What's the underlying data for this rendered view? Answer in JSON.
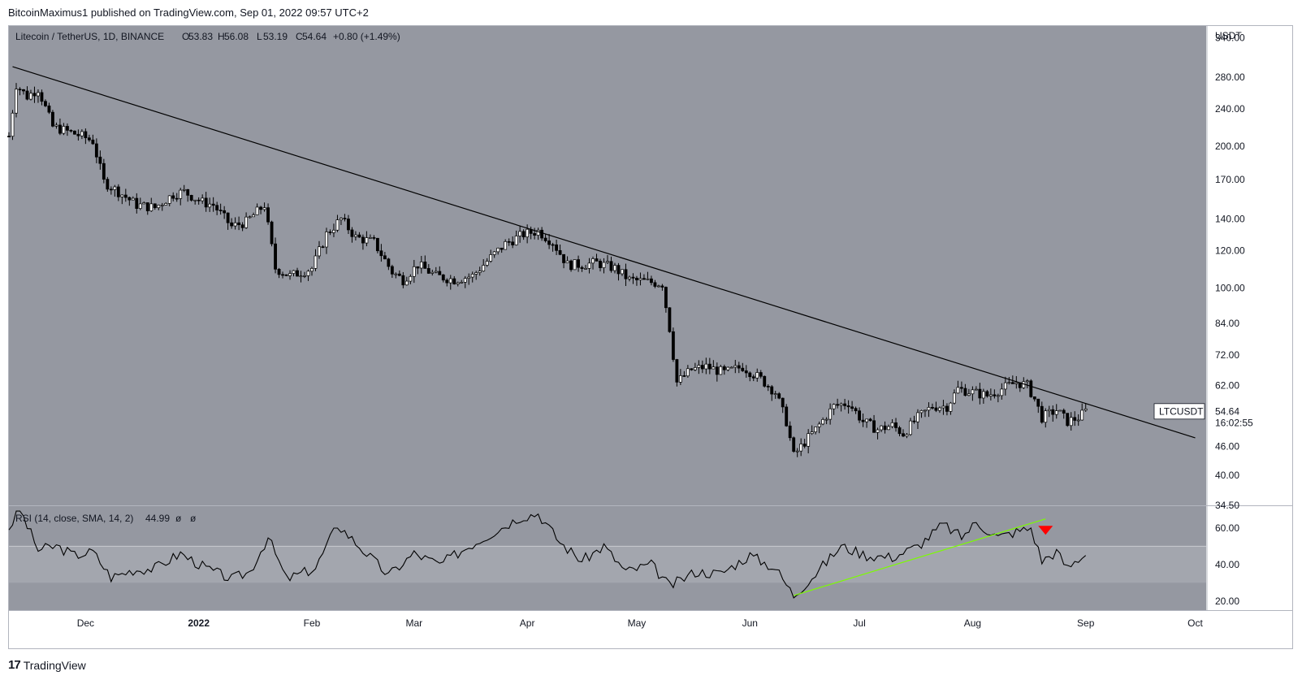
{
  "header": {
    "author_text": "BitcoinMaximus1 published on TradingView.com, Sep 01, 2022 09:57 UTC+2"
  },
  "legend": {
    "symbol": "Litecoin / TetherUS, 1D, BINANCE",
    "open_label": "O",
    "open": "53.83",
    "high_label": "H",
    "high": "56.08",
    "low_label": "L",
    "low": "53.19",
    "close_label": "C",
    "close": "54.64",
    "change": "+0.80 (+1.49%)"
  },
  "rsi_legend": {
    "label": "RSI (14, close, SMA, 14, 2)",
    "value": "44.99",
    "extra1": "ø",
    "extra2": "ø"
  },
  "price_axis": {
    "currency": "USDT",
    "ticks": [
      "340.00",
      "280.00",
      "240.00",
      "200.00",
      "170.00",
      "140.00",
      "120.00",
      "100.00",
      "84.00",
      "72.00",
      "62.00",
      "46.00",
      "40.00",
      "34.50"
    ]
  },
  "rsi_axis": {
    "ticks": [
      "60.00",
      "40.00",
      "20.00"
    ]
  },
  "price_tag": {
    "symbol": "LTCUSDT",
    "price": "54.64",
    "countdown": "16:02:55"
  },
  "time_axis": {
    "labels": [
      "Dec",
      "2022",
      "Feb",
      "Mar",
      "Apr",
      "May",
      "Jun",
      "Jul",
      "Aug",
      "Sep",
      "Oct"
    ]
  },
  "footer": {
    "brand": "TradingView",
    "logo_mark": "17"
  },
  "colors": {
    "pane_bg": "#9598a1",
    "rsi_band_bg": "#a3a6ae",
    "candle_up": "#ffffff",
    "candle_down": "#000000",
    "trendline": "#000000",
    "rsi_line": "#000000",
    "rsi_trendline": "#7cfc00",
    "signal_arrow": "#ff0000"
  },
  "chart_data": [
    {
      "type": "candlestick",
      "title": "Litecoin / TetherUS, 1D, BINANCE",
      "y_scale": "log",
      "ylim": [
        34.5,
        360
      ],
      "xlabel": "",
      "ylabel": "USDT",
      "x_range": [
        "2021-11-10",
        "2022-10-04"
      ],
      "series": [
        {
          "name": "LTCUSDT",
          "close_path": [
            [
              "2021-11-10",
              210
            ],
            [
              "2021-11-12",
              270
            ],
            [
              "2021-11-15",
              255
            ],
            [
              "2021-11-18",
              265
            ],
            [
              "2021-11-22",
              220
            ],
            [
              "2021-11-26",
              215
            ],
            [
              "2021-11-30",
              210
            ],
            [
              "2021-12-03",
              205
            ],
            [
              "2021-12-06",
              168
            ],
            [
              "2021-12-10",
              160
            ],
            [
              "2021-12-15",
              150
            ],
            [
              "2021-12-20",
              148
            ],
            [
              "2021-12-25",
              158
            ],
            [
              "2021-12-28",
              160
            ],
            [
              "2022-01-02",
              152
            ],
            [
              "2022-01-05",
              150
            ],
            [
              "2022-01-10",
              135
            ],
            [
              "2022-01-14",
              138
            ],
            [
              "2022-01-19",
              150
            ],
            [
              "2022-01-22",
              110
            ],
            [
              "2022-01-26",
              106
            ],
            [
              "2022-02-01",
              110
            ],
            [
              "2022-02-05",
              130
            ],
            [
              "2022-02-09",
              140
            ],
            [
              "2022-02-13",
              128
            ],
            [
              "2022-02-18",
              125
            ],
            [
              "2022-02-23",
              108
            ],
            [
              "2022-02-26",
              104
            ],
            [
              "2022-03-02",
              112
            ],
            [
              "2022-03-07",
              106
            ],
            [
              "2022-03-12",
              104
            ],
            [
              "2022-03-17",
              106
            ],
            [
              "2022-03-22",
              116
            ],
            [
              "2022-03-26",
              124
            ],
            [
              "2022-03-31",
              130
            ],
            [
              "2022-04-04",
              132
            ],
            [
              "2022-04-08",
              125
            ],
            [
              "2022-04-12",
              112
            ],
            [
              "2022-04-16",
              112
            ],
            [
              "2022-04-20",
              113
            ],
            [
              "2022-04-25",
              110
            ],
            [
              "2022-04-29",
              104
            ],
            [
              "2022-05-04",
              103
            ],
            [
              "2022-05-08",
              102
            ],
            [
              "2022-05-10",
              82
            ],
            [
              "2022-05-12",
              63
            ],
            [
              "2022-05-16",
              67
            ],
            [
              "2022-05-20",
              68
            ],
            [
              "2022-05-25",
              66
            ],
            [
              "2022-05-30",
              68
            ],
            [
              "2022-06-04",
              64
            ],
            [
              "2022-06-08",
              60
            ],
            [
              "2022-06-11",
              52
            ],
            [
              "2022-06-13",
              44
            ],
            [
              "2022-06-16",
              47
            ],
            [
              "2022-06-19",
              50
            ],
            [
              "2022-06-24",
              56
            ],
            [
              "2022-06-28",
              57
            ],
            [
              "2022-07-02",
              52
            ],
            [
              "2022-07-06",
              50
            ],
            [
              "2022-07-10",
              51
            ],
            [
              "2022-07-13",
              49
            ],
            [
              "2022-07-17",
              53
            ],
            [
              "2022-07-21",
              56
            ],
            [
              "2022-07-25",
              56
            ],
            [
              "2022-07-28",
              61
            ],
            [
              "2022-08-01",
              60
            ],
            [
              "2022-08-05",
              59
            ],
            [
              "2022-08-09",
              61
            ],
            [
              "2022-08-13",
              63
            ],
            [
              "2022-08-16",
              62
            ],
            [
              "2022-08-18",
              58
            ],
            [
              "2022-08-20",
              53
            ],
            [
              "2022-08-24",
              55
            ],
            [
              "2022-08-27",
              52
            ],
            [
              "2022-08-30",
              53
            ],
            [
              "2022-09-01",
              54.64
            ]
          ],
          "last": {
            "open": 53.83,
            "high": 56.08,
            "low": 53.19,
            "close": 54.64,
            "change": 0.8,
            "change_pct": 1.49
          }
        }
      ],
      "annotations": [
        {
          "type": "descending-trendline",
          "from": [
            "2021-11-11",
            295
          ],
          "to": [
            "2022-10-01",
            48
          ]
        }
      ]
    },
    {
      "type": "line",
      "title": "RSI (14, close, SMA, 14, 2)",
      "ylim": [
        15,
        72
      ],
      "overbought_band": [
        30,
        50
      ],
      "series": [
        {
          "name": "RSI",
          "points": [
            [
              "2021-11-10",
              60
            ],
            [
              "2021-11-13",
              70
            ],
            [
              "2021-11-18",
              48
            ],
            [
              "2021-11-23",
              50
            ],
            [
              "2021-11-28",
              45
            ],
            [
              "2021-12-03",
              47
            ],
            [
              "2021-12-08",
              33
            ],
            [
              "2021-12-14",
              37
            ],
            [
              "2021-12-20",
              38
            ],
            [
              "2021-12-27",
              46
            ],
            [
              "2022-01-03",
              38
            ],
            [
              "2022-01-10",
              32
            ],
            [
              "2022-01-15",
              36
            ],
            [
              "2022-01-20",
              55
            ],
            [
              "2022-01-25",
              32
            ],
            [
              "2022-02-02",
              38
            ],
            [
              "2022-02-08",
              62
            ],
            [
              "2022-02-15",
              48
            ],
            [
              "2022-02-22",
              34
            ],
            [
              "2022-03-01",
              46
            ],
            [
              "2022-03-08",
              40
            ],
            [
              "2022-03-16",
              50
            ],
            [
              "2022-03-23",
              58
            ],
            [
              "2022-03-30",
              66
            ],
            [
              "2022-04-04",
              68
            ],
            [
              "2022-04-10",
              52
            ],
            [
              "2022-04-16",
              42
            ],
            [
              "2022-04-22",
              50
            ],
            [
              "2022-04-28",
              36
            ],
            [
              "2022-05-05",
              40
            ],
            [
              "2022-05-10",
              28
            ],
            [
              "2022-05-17",
              36
            ],
            [
              "2022-05-24",
              35
            ],
            [
              "2022-06-01",
              45
            ],
            [
              "2022-06-08",
              38
            ],
            [
              "2022-06-13",
              23
            ],
            [
              "2022-06-19",
              35
            ],
            [
              "2022-06-26",
              50
            ],
            [
              "2022-07-03",
              45
            ],
            [
              "2022-07-10",
              44
            ],
            [
              "2022-07-17",
              50
            ],
            [
              "2022-07-24",
              62
            ],
            [
              "2022-07-29",
              55
            ],
            [
              "2022-08-02",
              63
            ],
            [
              "2022-08-08",
              55
            ],
            [
              "2022-08-13",
              58
            ],
            [
              "2022-08-17",
              60
            ],
            [
              "2022-08-20",
              42
            ],
            [
              "2022-08-24",
              47
            ],
            [
              "2022-08-27",
              38
            ],
            [
              "2022-08-30",
              43
            ],
            [
              "2022-09-01",
              44.99
            ]
          ]
        }
      ],
      "annotations": [
        {
          "type": "ascending-trendline",
          "color": "#7cfc00",
          "from": [
            "2022-06-13",
            23
          ],
          "to": [
            "2022-08-21",
            65
          ]
        },
        {
          "type": "down-arrow",
          "color": "#ff0000",
          "at": [
            "2022-08-21",
            59
          ]
        }
      ]
    }
  ]
}
